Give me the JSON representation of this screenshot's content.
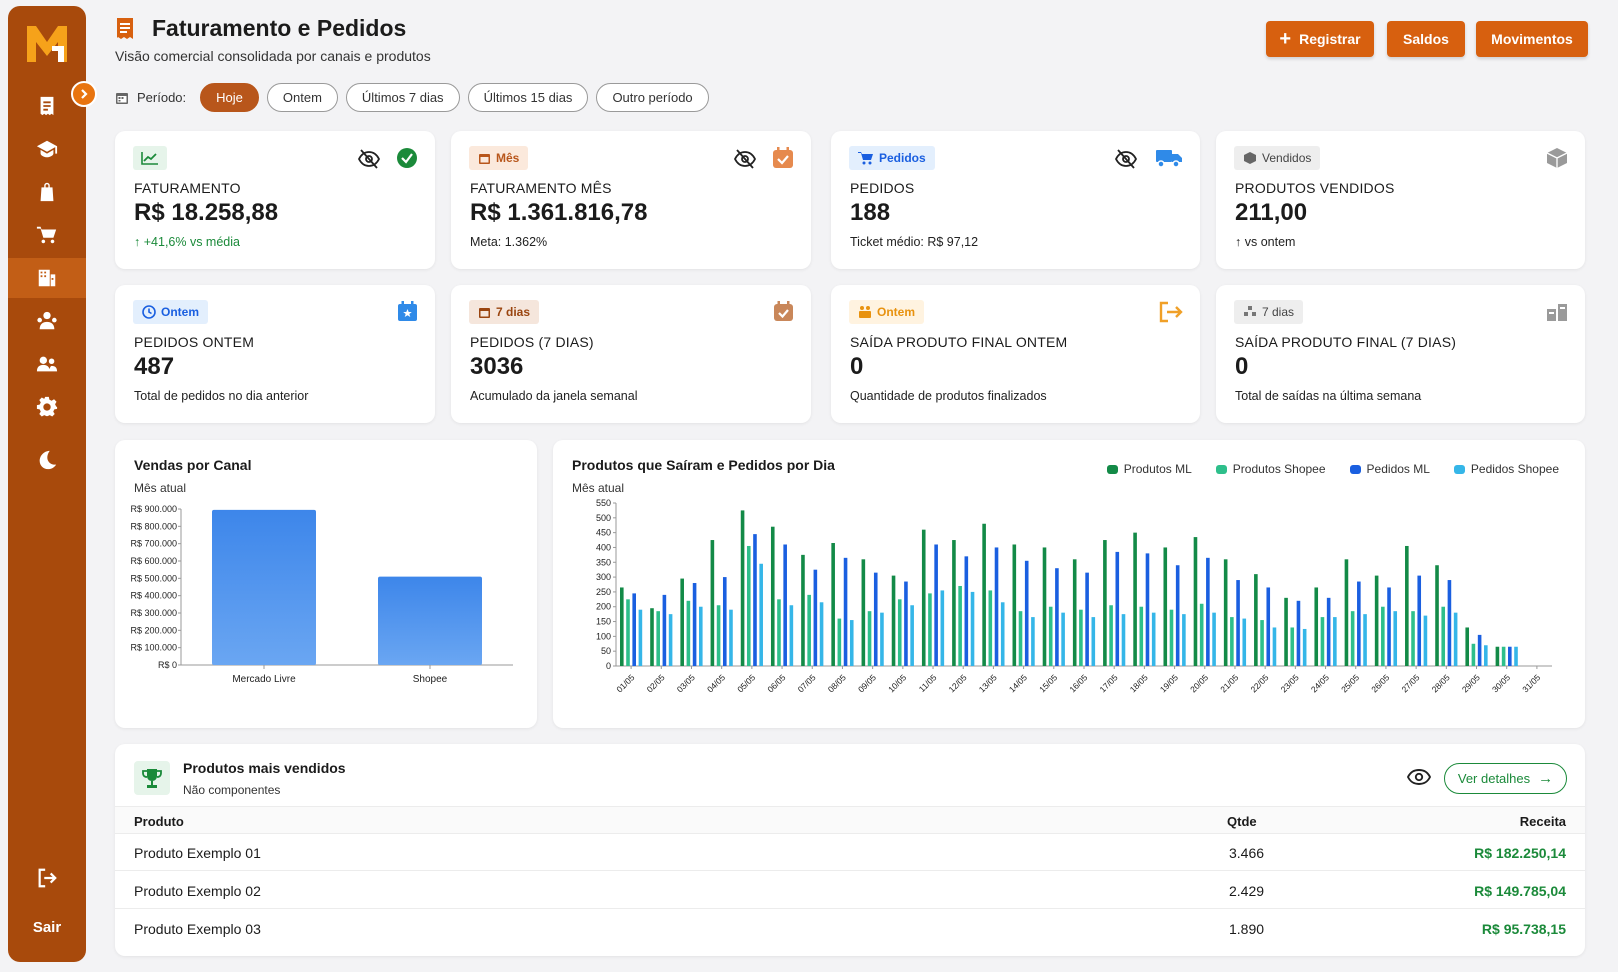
{
  "header": {
    "title": "Faturamento e Pedidos",
    "subtitle": "Visão comercial consolidada por canais e produtos",
    "buttons": {
      "register": "Registrar",
      "balances": "Saldos",
      "movements": "Movimentos"
    }
  },
  "period": {
    "label": "Período:",
    "options": [
      "Hoje",
      "Ontem",
      "Últimos 7 dias",
      "Últimos 15 dias",
      "Outro período"
    ],
    "selected": "Hoje"
  },
  "sidebar": {
    "logo": "M",
    "logout_label": "Sair"
  },
  "kpis": [
    {
      "badge": "",
      "label": "FATURAMENTO",
      "value": "R$ 18.258,88",
      "foot": "+41,6% vs média"
    },
    {
      "badge": "Mês",
      "label": "FATURAMENTO MÊS",
      "value": "R$ 1.361.816,78",
      "foot": "Meta: 1.362%"
    },
    {
      "badge": "Pedidos",
      "label": "PEDIDOS",
      "value": "188",
      "foot": "Ticket médio: R$ 97,12"
    },
    {
      "badge": "Vendidos",
      "label": "PRODUTOS VENDIDOS",
      "value": "211,00",
      "foot": "↑ vs ontem"
    },
    {
      "badge": "Ontem",
      "label": "PEDIDOS ONTEM",
      "value": "487",
      "foot": "Total de pedidos no dia anterior"
    },
    {
      "badge": "7 dias",
      "label": "PEDIDOS (7 DIAS)",
      "value": "3036",
      "foot": "Acumulado da janela semanal"
    },
    {
      "badge": "Ontem",
      "label": "SAÍDA PRODUTO FINAL ONTEM",
      "value": "0",
      "foot": "Quantidade de produtos finalizados"
    },
    {
      "badge": "7 dias",
      "label": "SAÍDA PRODUTO FINAL (7 DIAS)",
      "value": "0",
      "foot": "Total de saídas na última semana"
    }
  ],
  "colors": {
    "sidebar": "#a84a0c",
    "accent": "#d7600f",
    "positive": "#1b8a3a"
  },
  "chart_data": [
    {
      "type": "bar",
      "title": "Vendas por Canal",
      "subtitle": "Mês atual",
      "categories": [
        "Mercado Livre",
        "Shopee"
      ],
      "values": [
        895000,
        510000
      ],
      "ylim": [
        0,
        900000
      ],
      "yticks": [
        "R$ 0",
        "R$ 100.000",
        "R$ 200.000",
        "R$ 300.000",
        "R$ 400.000",
        "R$ 500.000",
        "R$ 600.000",
        "R$ 700.000",
        "R$ 800.000",
        "R$ 900.000"
      ],
      "color": "#3d86ea"
    },
    {
      "type": "bar",
      "title": "Produtos que Saíram e Pedidos por Dia",
      "subtitle": "Mês atual",
      "ylim": [
        0,
        550
      ],
      "yticks": [
        0,
        50,
        100,
        150,
        200,
        250,
        300,
        350,
        400,
        450,
        500,
        550
      ],
      "x": [
        "01/05",
        "02/05",
        "03/05",
        "04/05",
        "05/05",
        "06/05",
        "07/05",
        "08/05",
        "09/05",
        "10/05",
        "11/05",
        "12/05",
        "13/05",
        "14/05",
        "15/05",
        "16/05",
        "17/05",
        "18/05",
        "19/05",
        "20/05",
        "21/05",
        "22/05",
        "23/05",
        "24/05",
        "25/05",
        "26/05",
        "27/05",
        "28/05",
        "29/05",
        "30/05",
        "31/05"
      ],
      "series": [
        {
          "name": "Produtos ML",
          "color": "#138a47",
          "values": [
            265,
            195,
            295,
            425,
            525,
            470,
            375,
            415,
            360,
            305,
            460,
            425,
            480,
            410,
            400,
            360,
            425,
            450,
            400,
            435,
            360,
            310,
            230,
            265,
            360,
            305,
            405,
            340,
            130,
            65,
            0
          ]
        },
        {
          "name": "Produtos Shopee",
          "color": "#2ebf8b",
          "values": [
            225,
            185,
            220,
            205,
            405,
            225,
            240,
            160,
            185,
            225,
            245,
            270,
            255,
            185,
            200,
            190,
            205,
            200,
            190,
            210,
            165,
            155,
            130,
            165,
            185,
            200,
            185,
            200,
            75,
            65,
            0
          ]
        },
        {
          "name": "Pedidos ML",
          "color": "#1a5fe0",
          "values": [
            245,
            240,
            280,
            300,
            445,
            410,
            325,
            365,
            315,
            285,
            410,
            370,
            400,
            355,
            330,
            315,
            385,
            380,
            340,
            365,
            290,
            265,
            220,
            230,
            285,
            265,
            305,
            290,
            105,
            65,
            0
          ]
        },
        {
          "name": "Pedidos Shopee",
          "color": "#35b6e8",
          "values": [
            190,
            175,
            200,
            190,
            345,
            205,
            215,
            155,
            180,
            205,
            255,
            250,
            215,
            165,
            180,
            165,
            175,
            180,
            175,
            180,
            160,
            130,
            125,
            165,
            175,
            185,
            170,
            180,
            70,
            65,
            0
          ]
        }
      ]
    }
  ],
  "top_products": {
    "title": "Produtos mais vendidos",
    "subtitle": "Não componentes",
    "details_label": "Ver detalhes",
    "columns": [
      "Produto",
      "Qtde",
      "Receita"
    ],
    "rows": [
      {
        "name": "Produto Exemplo 01",
        "qty": "3.466",
        "revenue": "R$ 182.250,14"
      },
      {
        "name": "Produto Exemplo 02",
        "qty": "2.429",
        "revenue": "R$ 149.785,04"
      },
      {
        "name": "Produto Exemplo 03",
        "qty": "1.890",
        "revenue": "R$ 95.738,15"
      }
    ]
  }
}
